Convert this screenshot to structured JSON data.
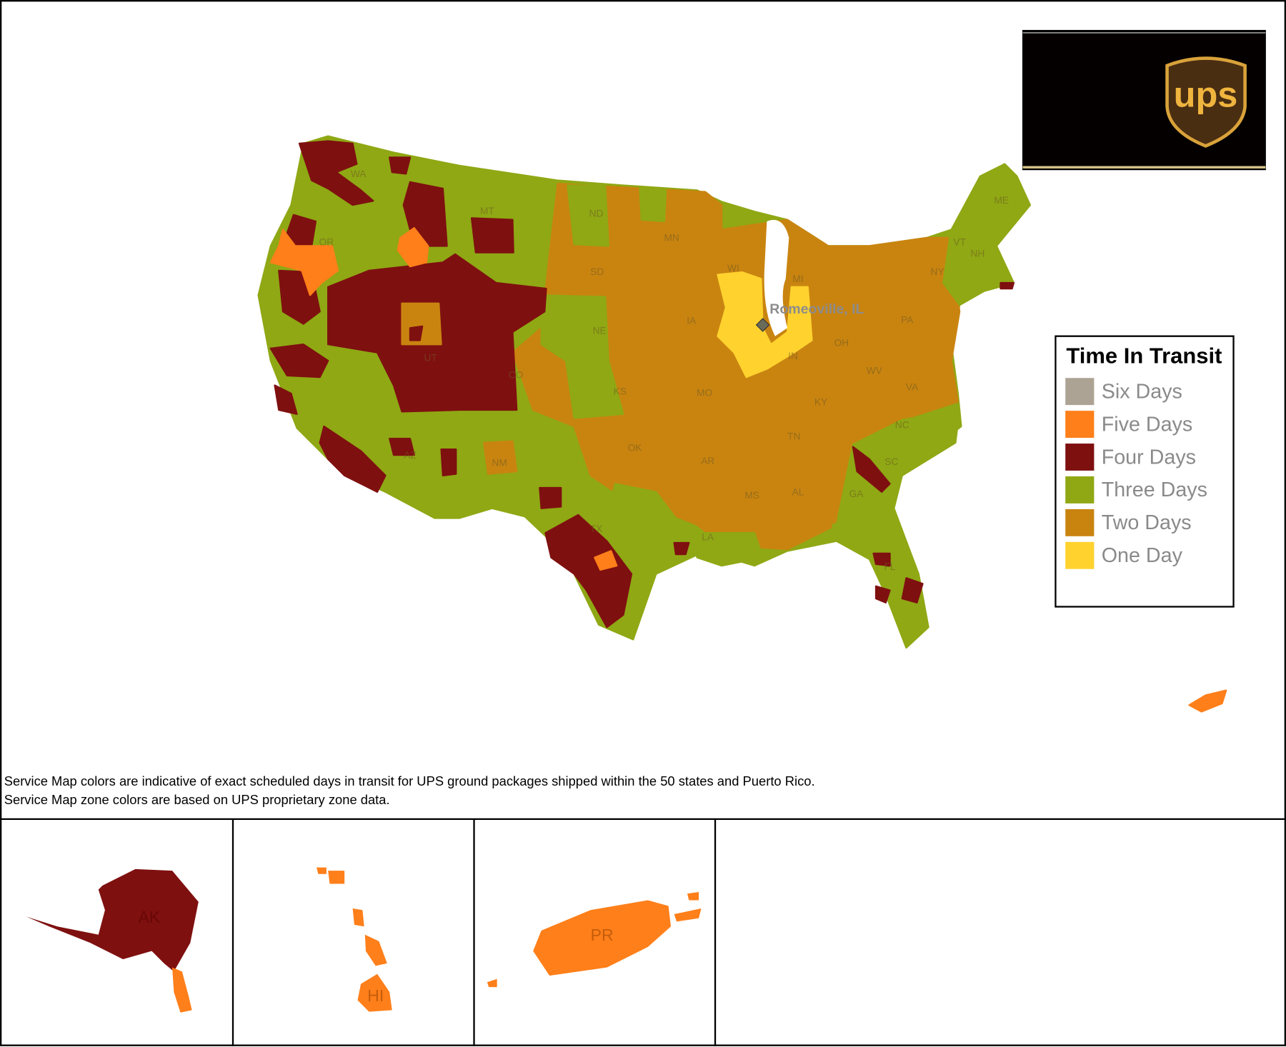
{
  "map": {
    "origin": "Romeoville, IL",
    "state_labels": [
      "WA",
      "OR",
      "MT",
      "ND",
      "MN",
      "SD",
      "WI",
      "MI",
      "NY",
      "VT",
      "NH",
      "ME",
      "PA",
      "OH",
      "IN",
      "IA",
      "NE",
      "CO",
      "UT",
      "KS",
      "MO",
      "KY",
      "WV",
      "VA",
      "NC",
      "TN",
      "SC",
      "OK",
      "AR",
      "AL",
      "GA",
      "MS",
      "NM",
      "AZ",
      "TX",
      "LA",
      "FL"
    ],
    "insets": [
      "AK",
      "HI",
      "PR"
    ]
  },
  "legend": {
    "title": "Time In Transit",
    "items": [
      {
        "label": "Six Days",
        "color": "#ada394"
      },
      {
        "label": "Five Days",
        "color": "#ff7f1a"
      },
      {
        "label": "Four Days",
        "color": "#7f1010"
      },
      {
        "label": "Three Days",
        "color": "#8fa814"
      },
      {
        "label": "Two Days",
        "color": "#c98410"
      },
      {
        "label": "One Day",
        "color": "#ffd22e"
      }
    ]
  },
  "notes": [
    "Service Map colors are indicative of exact scheduled days in transit for UPS ground packages shipped within the 50 states and Puerto Rico.",
    "Service Map zone colors are based on UPS proprietary zone data."
  ],
  "logo": "ups"
}
